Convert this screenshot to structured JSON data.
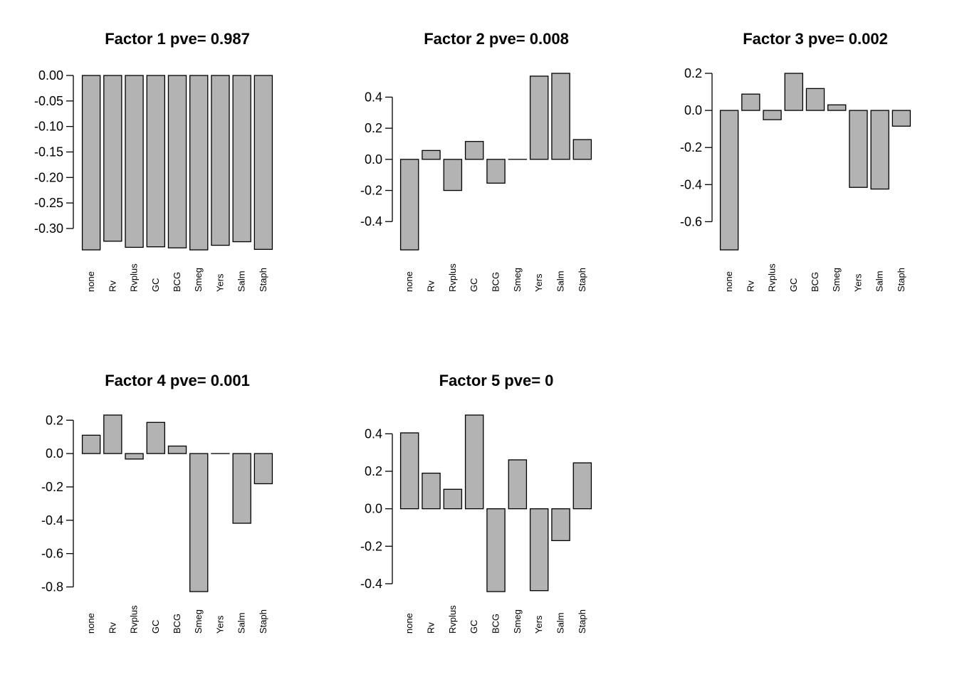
{
  "chart_data": [
    {
      "type": "bar",
      "title": "Factor 1 pve= 0.987",
      "categories": [
        "none",
        "Rv",
        "Rvplus",
        "GC",
        "BCG",
        "Smeg",
        "Yers",
        "Salm",
        "Staph"
      ],
      "values": [
        -0.342,
        -0.325,
        -0.337,
        -0.336,
        -0.338,
        -0.342,
        -0.333,
        -0.326,
        -0.341
      ],
      "yticks": [
        "0.00",
        "-0.05",
        "-0.10",
        "-0.15",
        "-0.20",
        "-0.25",
        "-0.30"
      ],
      "ytick_values": [
        0.0,
        -0.05,
        -0.1,
        -0.15,
        -0.2,
        -0.25,
        -0.3
      ],
      "ylim": [
        -0.342,
        0.0
      ],
      "xlabel": "",
      "ylabel": "",
      "grid": false
    },
    {
      "type": "bar",
      "title": "Factor 2 pve= 0.008",
      "categories": [
        "none",
        "Rv",
        "Rvplus",
        "GC",
        "BCG",
        "Smeg",
        "Yers",
        "Salm",
        "Staph"
      ],
      "values": [
        -0.582,
        0.057,
        -0.2,
        0.115,
        -0.153,
        0.0,
        0.535,
        0.553,
        0.127
      ],
      "yticks": [
        "-0.4",
        "-0.2",
        "0.0",
        "0.2",
        "0.4"
      ],
      "ytick_values": [
        -0.4,
        -0.2,
        0.0,
        0.2,
        0.4
      ],
      "ylim": [
        -0.582,
        0.553
      ],
      "xlabel": "",
      "ylabel": "",
      "grid": false
    },
    {
      "type": "bar",
      "title": "Factor 3 pve= 0.002",
      "categories": [
        "none",
        "Rv",
        "Rvplus",
        "GC",
        "BCG",
        "Smeg",
        "Yers",
        "Salm",
        "Staph"
      ],
      "values": [
        -0.752,
        0.088,
        -0.05,
        0.2,
        0.118,
        0.03,
        -0.415,
        -0.424,
        -0.085
      ],
      "yticks": [
        "-0.6",
        "-0.4",
        "-0.2",
        "0.0",
        "0.2"
      ],
      "ytick_values": [
        -0.6,
        -0.4,
        -0.2,
        0.0,
        0.2
      ],
      "ylim": [
        -0.752,
        0.2
      ],
      "xlabel": "",
      "ylabel": "",
      "grid": false
    },
    {
      "type": "bar",
      "title": "Factor 4 pve= 0.001",
      "categories": [
        "none",
        "Rv",
        "Rvplus",
        "GC",
        "BCG",
        "Smeg",
        "Yers",
        "Salm",
        "Staph"
      ],
      "values": [
        0.11,
        0.231,
        -0.033,
        0.187,
        0.045,
        -0.828,
        0.0,
        -0.418,
        -0.181
      ],
      "yticks": [
        "-0.8",
        "-0.6",
        "-0.4",
        "-0.2",
        "0.0",
        "0.2"
      ],
      "ytick_values": [
        -0.8,
        -0.6,
        -0.4,
        -0.2,
        0.0,
        0.2
      ],
      "ylim": [
        -0.828,
        0.231
      ],
      "xlabel": "",
      "ylabel": "",
      "grid": false
    },
    {
      "type": "bar",
      "title": "Factor 5 pve= 0",
      "categories": [
        "none",
        "Rv",
        "Rvplus",
        "GC",
        "BCG",
        "Smeg",
        "Yers",
        "Salm",
        "Staph"
      ],
      "values": [
        0.405,
        0.19,
        0.104,
        0.5,
        -0.442,
        0.261,
        -0.437,
        -0.17,
        0.245
      ],
      "yticks": [
        "-0.4",
        "-0.2",
        "0.0",
        "0.2",
        "0.4"
      ],
      "ytick_values": [
        -0.4,
        -0.2,
        0.0,
        0.2,
        0.4
      ],
      "ylim": [
        -0.442,
        0.5
      ],
      "xlabel": "",
      "ylabel": "",
      "grid": false
    }
  ],
  "colors": {
    "bar_fill": "#b3b3b3",
    "bar_stroke": "#000000",
    "axis": "#000000",
    "background": "#ffffff"
  }
}
